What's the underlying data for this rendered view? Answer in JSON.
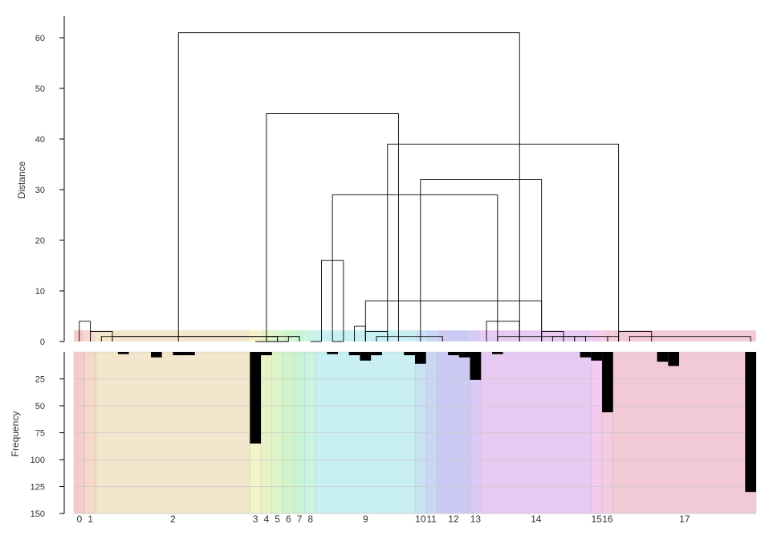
{
  "chart_data": [
    {
      "type": "dendrogram",
      "ylabel": "Distance",
      "ylim": [
        0,
        62
      ],
      "yticks": [
        "0",
        "10",
        "20",
        "30",
        "40",
        "50",
        "60"
      ],
      "n_leaves": 62,
      "merges": [
        {
          "a": 0,
          "b": 1,
          "h": 4
        },
        {
          "a": 1,
          "b": 3,
          "h": 2
        },
        {
          "a": 2,
          "b": 18,
          "h": 1
        },
        {
          "a": 3,
          "b": 20,
          "h": 1
        },
        {
          "a": 16,
          "b": 17,
          "h": 0
        },
        {
          "a": 17,
          "b": 18,
          "h": 1
        },
        {
          "a": 17,
          "b": 19,
          "h": 0
        },
        {
          "a": 19,
          "b": 20,
          "h": 1
        },
        {
          "a": 9,
          "b": 40,
          "h": 61
        },
        {
          "a": 17,
          "b": 29,
          "h": 45
        },
        {
          "a": 28,
          "b": 49,
          "h": 39
        },
        {
          "a": 23,
          "b": 38,
          "h": 29
        },
        {
          "a": 22,
          "b": 24,
          "h": 16
        },
        {
          "a": 21,
          "b": 22,
          "h": 0
        },
        {
          "a": 23,
          "b": 24,
          "h": 0
        },
        {
          "a": 31,
          "b": 42,
          "h": 32
        },
        {
          "a": 26,
          "b": 42,
          "h": 8
        },
        {
          "a": 25,
          "b": 26,
          "h": 3
        },
        {
          "a": 26,
          "b": 28,
          "h": 2
        },
        {
          "a": 27,
          "b": 33,
          "h": 1
        },
        {
          "a": 42,
          "b": 44,
          "h": 2
        },
        {
          "a": 43,
          "b": 45,
          "h": 1
        },
        {
          "a": 45,
          "b": 46,
          "h": 1
        },
        {
          "a": 37,
          "b": 40,
          "h": 4
        },
        {
          "a": 38,
          "b": 48,
          "h": 1
        },
        {
          "a": 48,
          "b": 49,
          "h": 1
        },
        {
          "a": 49,
          "b": 52,
          "h": 2
        },
        {
          "a": 50,
          "b": 61,
          "h": 1
        }
      ],
      "bands": [
        {
          "cluster": "0",
          "from": 0,
          "to": 1,
          "color": "#f4cccc"
        },
        {
          "cluster": "1",
          "from": 1,
          "to": 2,
          "color": "#f4d8c8"
        },
        {
          "cluster": "2",
          "from": 2,
          "to": 16,
          "color": "#f2e6cc"
        },
        {
          "cluster": "3",
          "from": 16,
          "to": 17,
          "color": "#f4f4c8"
        },
        {
          "cluster": "4",
          "from": 17,
          "to": 18,
          "color": "#e6f4c8"
        },
        {
          "cluster": "5",
          "from": 18,
          "to": 19,
          "color": "#dcf4c8"
        },
        {
          "cluster": "6",
          "from": 19,
          "to": 20,
          "color": "#d0f4cc"
        },
        {
          "cluster": "7",
          "from": 20,
          "to": 21,
          "color": "#c8f4d4"
        },
        {
          "cluster": "8",
          "from": 21,
          "to": 22,
          "color": "#c8f4e0"
        },
        {
          "cluster": "9",
          "from": 22,
          "to": 31,
          "color": "#c8eff2"
        },
        {
          "cluster": "10",
          "from": 31,
          "to": 32,
          "color": "#c8e2f4"
        },
        {
          "cluster": "11",
          "from": 32,
          "to": 33,
          "color": "#c8d6f4"
        },
        {
          "cluster": "12",
          "from": 33,
          "to": 36,
          "color": "#cccaf4"
        },
        {
          "cluster": "13",
          "from": 36,
          "to": 37,
          "color": "#d8caf4"
        },
        {
          "cluster": "14",
          "from": 37,
          "to": 47,
          "color": "#e6caf2"
        },
        {
          "cluster": "15",
          "from": 47,
          "to": 48,
          "color": "#f4caf0"
        },
        {
          "cluster": "16",
          "from": 48,
          "to": 49,
          "color": "#f4caE0"
        },
        {
          "cluster": "17",
          "from": 49,
          "to": 62,
          "color": "#f2cad6"
        }
      ]
    },
    {
      "type": "bar",
      "ylabel": "Frequency",
      "ylim": [
        0,
        150
      ],
      "inverted": true,
      "yticks": [
        "25",
        "50",
        "75",
        "100",
        "125",
        "150"
      ],
      "values": [
        0,
        0,
        0,
        0,
        2,
        0,
        0,
        5,
        0,
        3,
        3,
        0,
        0,
        0,
        0,
        0,
        85,
        3,
        0,
        0,
        0,
        0,
        0,
        2,
        0,
        3,
        8,
        3,
        0,
        0,
        3,
        11,
        0,
        0,
        3,
        5,
        26,
        0,
        2,
        0,
        0,
        0,
        0,
        0,
        0,
        0,
        5,
        8,
        56,
        0,
        0,
        0,
        0,
        9,
        13,
        0,
        0,
        0,
        0,
        0,
        0,
        130
      ]
    },
    {
      "type": "category-axis",
      "cluster_labels": [
        "0",
        "1",
        "2",
        "3",
        "4",
        "5",
        "6",
        "7",
        "8",
        "9",
        "10",
        "11",
        "12",
        "13",
        "14",
        "15",
        "16",
        "17"
      ]
    }
  ],
  "colors": {
    "link": "#000000",
    "bar": "#000000",
    "grid": "#c8c8c8",
    "axis": "#000000"
  }
}
